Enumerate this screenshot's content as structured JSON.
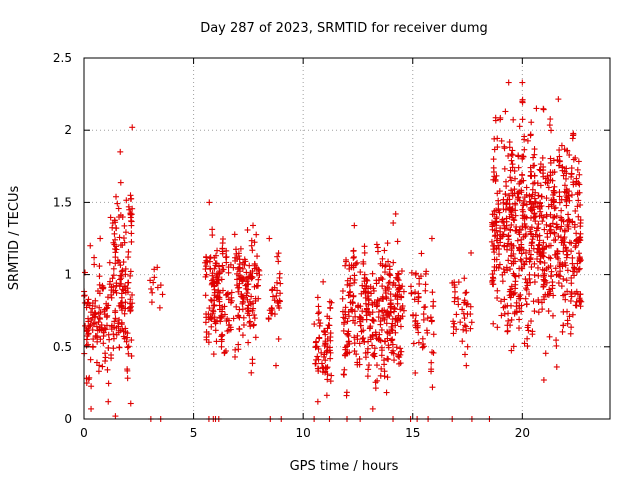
{
  "chart_data": {
    "type": "scatter",
    "title": "Day 287 of 2023, SRMTID for receiver dumg",
    "xlabel": "GPS time / hours",
    "ylabel": "SRMTID / TECUs",
    "xlim": [
      0,
      24
    ],
    "ylim": [
      0,
      2.5
    ],
    "xticks": [
      0,
      5,
      10,
      15,
      20
    ],
    "yticks": [
      0,
      0.5,
      1,
      1.5,
      2,
      2.5
    ],
    "xtick_labels": [
      "0",
      "5",
      "10",
      "15",
      "20"
    ],
    "ytick_labels": [
      "0",
      "0.5",
      "1",
      "1.5",
      "2",
      "2.5"
    ],
    "grid": true,
    "legend": "none",
    "series": [
      {
        "name": "SRMTID",
        "marker": "plus",
        "color": "#e00000",
        "clusters": [
          {
            "x": [
              0.0,
              0.5
            ],
            "y_range": [
              0.05,
              1.2
            ],
            "density": "high"
          },
          {
            "x": [
              0.5,
              1.2
            ],
            "y_range": [
              0.1,
              1.25
            ],
            "density": "high"
          },
          {
            "x": [
              1.2,
              2.2
            ],
            "y_range": [
              0.0,
              1.85
            ],
            "density": "high"
          },
          {
            "x": [
              3.0,
              3.6
            ],
            "y_range": [
              0.75,
              1.05
            ],
            "density": "low"
          },
          {
            "x": [
              5.5,
              8.0
            ],
            "y_range": [
              0.3,
              1.5
            ],
            "density": "high"
          },
          {
            "x": [
              8.4,
              9.0
            ],
            "y_range": [
              0.35,
              1.25
            ],
            "density": "medium"
          },
          {
            "x": [
              10.5,
              11.3
            ],
            "y_range": [
              0.1,
              0.95
            ],
            "density": "high"
          },
          {
            "x": [
              11.8,
              14.6
            ],
            "y_range": [
              0.05,
              1.42
            ],
            "density": "high"
          },
          {
            "x": [
              14.9,
              16.0
            ],
            "y_range": [
              0.2,
              1.25
            ],
            "density": "medium"
          },
          {
            "x": [
              16.8,
              17.7
            ],
            "y_range": [
              0.35,
              1.15
            ],
            "density": "medium"
          },
          {
            "x": [
              18.6,
              22.7
            ],
            "y_range": [
              0.25,
              2.33
            ],
            "density": "high"
          }
        ],
        "outliers": [
          {
            "x": 2.2,
            "y": 2.02
          },
          {
            "x": 20.0,
            "y": 2.33
          },
          {
            "x": 20.0,
            "y": 2.2
          }
        ],
        "zero_points_x": [
          3.05,
          3.5,
          5.7,
          5.9,
          6.0,
          6.15,
          8.5,
          9.0,
          10.5,
          11.2,
          12.0,
          12.6,
          14.1,
          14.9,
          15.2,
          15.7,
          16.8,
          17.7,
          18.5
        ]
      }
    ]
  }
}
